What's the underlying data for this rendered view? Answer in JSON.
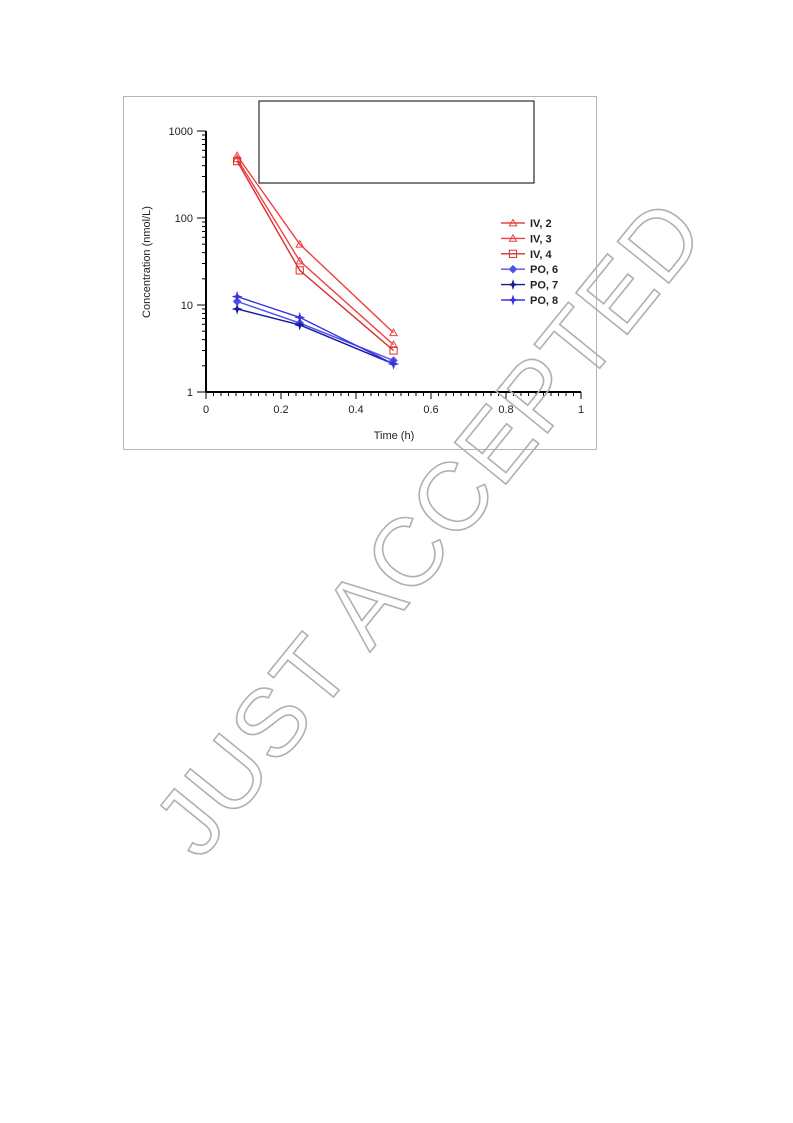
{
  "watermark": "JUST ACCEPTED",
  "chart_data": {
    "type": "line",
    "xlabel": "Time (h)",
    "ylabel": "Concentration (nmol/L)",
    "xlim": [
      0,
      1
    ],
    "ylim": [
      1,
      1000
    ],
    "yscale": "log",
    "x_ticks": [
      "0",
      "0.2",
      "0.4",
      "0.6",
      "0.8",
      "1"
    ],
    "y_ticks": [
      "1",
      "10",
      "100",
      "1000"
    ],
    "legend_position": "right",
    "grid": false,
    "series": [
      {
        "name": "IV, 2",
        "color": "#f04040",
        "marker": "triangle",
        "x": [
          0.083,
          0.25,
          0.5
        ],
        "y": [
          520,
          50,
          4.8
        ]
      },
      {
        "name": "IV, 3",
        "color": "#f04040",
        "marker": "triangle",
        "x": [
          0.083,
          0.25,
          0.5
        ],
        "y": [
          480,
          32,
          3.5
        ]
      },
      {
        "name": "IV, 4",
        "color": "#d83030",
        "marker": "square",
        "x": [
          0.083,
          0.25,
          0.5
        ],
        "y": [
          450,
          25,
          3.0
        ]
      },
      {
        "name": "PO, 6",
        "color": "#5050e8",
        "marker": "diamond",
        "x": [
          0.083,
          0.25,
          0.5
        ],
        "y": [
          11,
          6.2,
          2.3
        ]
      },
      {
        "name": "PO, 7",
        "color": "#1a1aa0",
        "marker": "star",
        "x": [
          0.083,
          0.25,
          0.5
        ],
        "y": [
          9,
          5.9,
          2.1
        ]
      },
      {
        "name": "PO, 8",
        "color": "#3535e0",
        "marker": "star",
        "x": [
          0.083,
          0.25,
          0.5
        ],
        "y": [
          12.5,
          7.2,
          2.1
        ]
      }
    ]
  }
}
